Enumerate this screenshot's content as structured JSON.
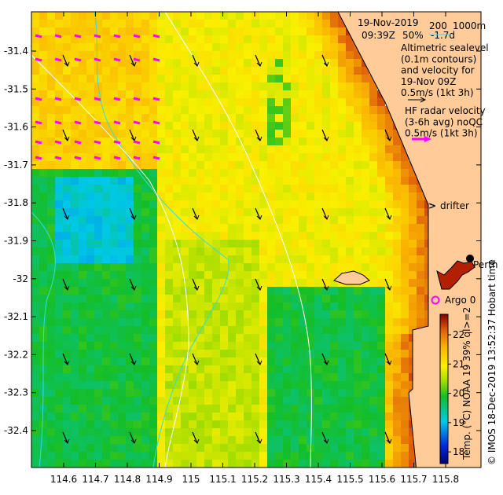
{
  "header": {
    "date": "19-Nov-2019",
    "time": "09:39Z",
    "coverage": "50%",
    "age": "-1.7d",
    "depth_contour_labels": [
      "200",
      "1000m"
    ]
  },
  "legend": {
    "altimetry_lines": [
      "Altimetric sealevel",
      "(0.1m contours)",
      "and velocity for",
      "19-Nov 09Z",
      "0.5m/s (1kt 3h)"
    ],
    "hf_radar_lines": [
      "HF radar velocity",
      "(3-6h avg) noQC",
      "0.5m/s (1kt 3h)"
    ],
    "drifter_label": "drifter",
    "argo_label": "Argo 0",
    "city_label": "Perth"
  },
  "axes": {
    "lat_ticks": [
      "-31.4",
      "-31.5",
      "-31.6",
      "-31.7",
      "-31.8",
      "-31.9",
      "-32",
      "-32.1",
      "-32.2",
      "-32.3",
      "-32.4"
    ],
    "lon_ticks": [
      "114.6",
      "114.7",
      "114.8",
      "114.9",
      "115",
      "115.1",
      "115.2",
      "115.3",
      "115.4",
      "115.5",
      "115.6",
      "115.7",
      "115.8"
    ]
  },
  "colorbar": {
    "label": "Temp. (°C) NOAA 19 39% ql>=2",
    "ticks": [
      "18",
      "19",
      "20",
      "21",
      "22"
    ],
    "min": 17.6,
    "max": 22.7
  },
  "credit": "© IMOS 18-Dec-2019 13:52:37 Hobart time",
  "colors": {
    "land": "#ffcc99",
    "hf_radar": "#ff00ff",
    "depth_contour": "#33dddd",
    "sealevel_contour": "#ffffff"
  }
}
